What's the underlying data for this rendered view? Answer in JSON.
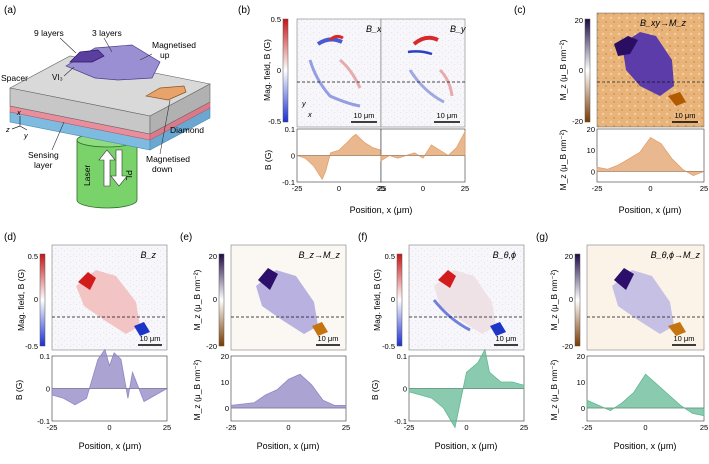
{
  "panel_labels": {
    "a": "(a)",
    "b": "(b)",
    "c": "(c)",
    "d": "(d)",
    "e": "(e)",
    "f": "(f)",
    "g": "(g)"
  },
  "schematic": {
    "nine_layers": "9 layers",
    "three_layers": "3 layers",
    "magnetised": "Magnetised",
    "up": "up",
    "spacer": "Spacer",
    "vi3": "VI₃",
    "diamond": "Diamond",
    "sensing": "Sensing",
    "layer": "layer",
    "laser": "Laser",
    "pl": "PL",
    "mag_down_1": "Magnetised",
    "mag_down_2": "down",
    "axis_x": "x",
    "axis_y": "y",
    "axis_z": "z"
  },
  "map_titles": {
    "b1": "B_x",
    "b2": "B_y",
    "c": "B_xy→M_z",
    "d": "B_z",
    "e": "B_z→M_z",
    "f": "B_θ,ϕ",
    "g": "B_θ,ϕ→M_z"
  },
  "scalebar": "10 μm",
  "xaxis_label": "Position, x (μm)",
  "x_ticks": [
    "-25",
    "0",
    "25"
  ],
  "colorbar_field": {
    "label": "Mag. field, B (G)",
    "max": "0.5",
    "mid": "0",
    "min": "-0.5"
  },
  "colorbar_mag": {
    "label": "M_z (μ_B nm⁻²)",
    "max": "20",
    "mid": "0",
    "min": "-20"
  },
  "profile_ylabel_field": "B (G)",
  "profile_ylabel_mag": "M_z (μ_B nm⁻²)",
  "colors": {
    "orange": "#e3a06a",
    "purple": "#8f86c4",
    "green": "#63b894",
    "map_red": "#d93a3a",
    "map_blue": "#3a4fd0",
    "mag_purple": "#3c1e78",
    "mag_orange": "#c4750f"
  },
  "chart_data": [
    {
      "type": "area",
      "panel": "b",
      "title": "B_x",
      "x": [
        -25,
        -20,
        -15,
        -10,
        -8,
        -5,
        0,
        5,
        8,
        10,
        15,
        20,
        25
      ],
      "values": [
        0.0,
        -0.01,
        -0.04,
        -0.09,
        -0.06,
        0.01,
        0.02,
        0.05,
        0.07,
        0.08,
        0.05,
        0.03,
        0.02
      ],
      "ylim": [
        -0.1,
        0.1
      ],
      "yticks": [
        "0.1",
        "0",
        "-0.1"
      ],
      "xlabel": "Position, x (μm)",
      "ylabel": "B (G)"
    },
    {
      "type": "area",
      "panel": "b",
      "title": "B_y",
      "x": [
        -25,
        -20,
        -15,
        -10,
        -5,
        0,
        5,
        10,
        15,
        20,
        25
      ],
      "values": [
        -0.02,
        0.0,
        -0.01,
        0.0,
        0.01,
        -0.01,
        0.04,
        0.02,
        0.0,
        0.03,
        0.09
      ],
      "ylim": [
        -0.1,
        0.1
      ],
      "xlabel": "Position, x (μm)"
    },
    {
      "type": "area",
      "panel": "c",
      "title": "B_xy→M_z",
      "x": [
        -25,
        -20,
        -15,
        -10,
        -5,
        0,
        5,
        10,
        15,
        20,
        25
      ],
      "values": [
        2,
        1,
        3,
        6,
        9,
        16,
        13,
        6,
        1,
        -2,
        0
      ],
      "ylim": [
        -5,
        20
      ],
      "yticks": [
        "20",
        "10",
        "0"
      ],
      "xlabel": "Position, x (μm)",
      "ylabel": "M_z (μ_B nm⁻²)"
    },
    {
      "type": "area",
      "panel": "d",
      "title": "B_z",
      "x": [
        -25,
        -20,
        -15,
        -10,
        -5,
        -2,
        0,
        2,
        5,
        8,
        10,
        15,
        20,
        25
      ],
      "values": [
        -0.02,
        -0.03,
        -0.05,
        -0.03,
        0.09,
        0.12,
        0.07,
        0.11,
        0.09,
        -0.03,
        0.05,
        -0.04,
        -0.02,
        0.0
      ],
      "ylim": [
        -0.1,
        0.1
      ],
      "yticks": [
        "0.1",
        "0",
        "-0.1"
      ],
      "xlabel": "Position, x (μm)",
      "ylabel": "B (G)"
    },
    {
      "type": "area",
      "panel": "e",
      "title": "B_z→M_z",
      "x": [
        -25,
        -15,
        -10,
        -5,
        0,
        5,
        10,
        15,
        20,
        25
      ],
      "values": [
        1,
        2,
        5,
        7,
        11,
        13,
        9,
        3,
        1,
        1
      ],
      "ylim": [
        -5,
        20
      ],
      "yticks": [
        "20",
        "10",
        "0"
      ],
      "xlabel": "Position, x (μm)",
      "ylabel": "M_z (μ_B nm⁻²)"
    },
    {
      "type": "area",
      "panel": "f",
      "title": "B_θ,ϕ",
      "x": [
        -25,
        -20,
        -15,
        -10,
        -5,
        0,
        5,
        8,
        10,
        15,
        20,
        25
      ],
      "values": [
        -0.01,
        -0.02,
        -0.03,
        -0.06,
        -0.12,
        0.05,
        0.08,
        0.12,
        0.05,
        0.02,
        0.02,
        0.01
      ],
      "ylim": [
        -0.1,
        0.1
      ],
      "yticks": [
        "0.1",
        "0",
        "-0.1"
      ],
      "xlabel": "Position, x (μm)",
      "ylabel": "B (G)"
    },
    {
      "type": "area",
      "panel": "g",
      "title": "B_θ,ϕ→M_z",
      "x": [
        -25,
        -20,
        -15,
        -10,
        -5,
        0,
        5,
        10,
        15,
        20,
        25
      ],
      "values": [
        3,
        1,
        -1,
        2,
        6,
        13,
        9,
        5,
        1,
        -2,
        -3
      ],
      "ylim": [
        -5,
        20
      ],
      "yticks": [
        "20",
        "10",
        "0"
      ],
      "xlabel": "Position, x (μm)",
      "ylabel": "M_z (μ_B nm⁻²)"
    }
  ]
}
